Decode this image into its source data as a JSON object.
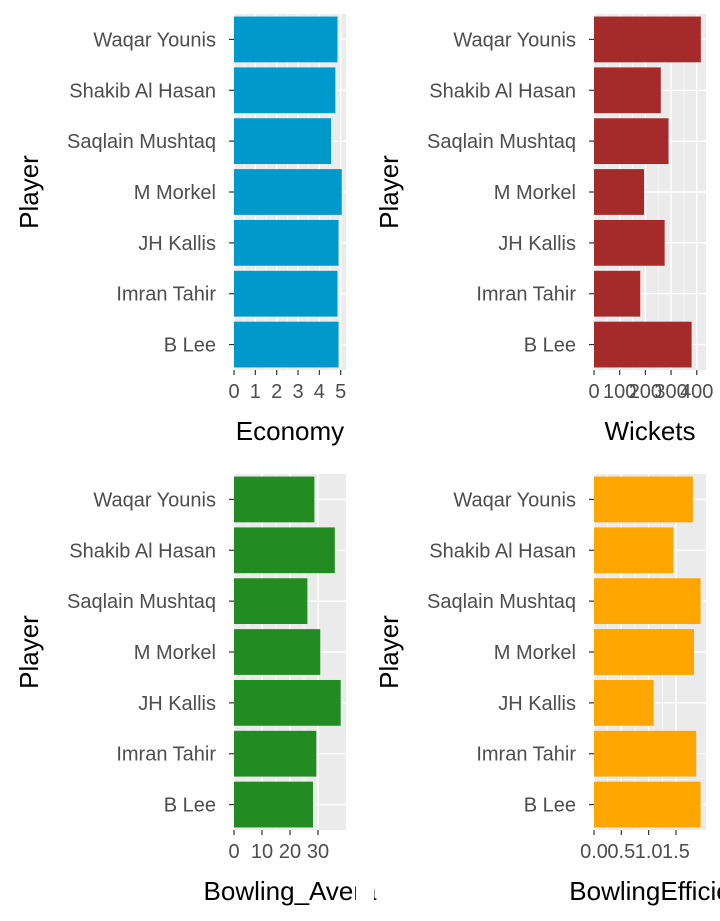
{
  "chart_data": [
    {
      "type": "bar",
      "orientation": "horizontal",
      "categories": [
        "B Lee",
        "Imran Tahir",
        "JH Kallis",
        "M Morkel",
        "Saqlain Mushtaq",
        "Shakib Al Hasan",
        "Waqar Younis"
      ],
      "values": [
        4.9,
        4.85,
        4.9,
        5.05,
        4.55,
        4.75,
        4.85
      ],
      "xlabel": "Economy",
      "ylabel": "Player",
      "xlim": [
        0,
        5.25
      ],
      "xticks": [
        "0",
        "1",
        "2",
        "3",
        "4",
        "5"
      ],
      "xtick_values": [
        0,
        1,
        2,
        3,
        4,
        5
      ],
      "color": "#0099cc",
      "grid": true,
      "panel_background": "#ebebeb"
    },
    {
      "type": "bar",
      "orientation": "horizontal",
      "categories": [
        "B Lee",
        "Imran Tahir",
        "JH Kallis",
        "M Morkel",
        "Saqlain Mushtaq",
        "Shakib Al Hasan",
        "Waqar Younis"
      ],
      "values": [
        380,
        180,
        275,
        195,
        290,
        260,
        416
      ],
      "xlabel": "Wickets",
      "ylabel": "Player",
      "xlim": [
        0,
        436
      ],
      "xticks": [
        "0",
        "100",
        "200",
        "300",
        "400"
      ],
      "xtick_values": [
        0,
        100,
        200,
        300,
        400
      ],
      "color": "#a52a2a",
      "grid": true,
      "panel_background": "#ebebeb"
    },
    {
      "type": "bar",
      "orientation": "horizontal",
      "categories": [
        "B Lee",
        "Imran Tahir",
        "JH Kallis",
        "M Morkel",
        "Saqlain Mushtaq",
        "Shakib Al Hasan",
        "Waqar Younis"
      ],
      "values": [
        28.2,
        29.4,
        38.1,
        30.8,
        26.2,
        36.0,
        28.7
      ],
      "xlabel": "Bowling_Avera",
      "ylabel": "Player",
      "xlim": [
        0,
        40
      ],
      "xticks": [
        "0",
        "10",
        "20",
        "30"
      ],
      "xtick_values": [
        0,
        10,
        20,
        30
      ],
      "color": "#228b22",
      "grid": true,
      "panel_background": "#ebebeb"
    },
    {
      "type": "bar",
      "orientation": "horizontal",
      "categories": [
        "B Lee",
        "Imran Tahir",
        "JH Kallis",
        "M Morkel",
        "Saqlain Mushtaq",
        "Shakib Al Hasan",
        "Waqar Younis"
      ],
      "values": [
        1.95,
        1.87,
        1.09,
        1.83,
        1.95,
        1.45,
        1.81
      ],
      "xlabel": "BowlingEfficie",
      "ylabel": "Player",
      "xlim": [
        0,
        2.05
      ],
      "xticks": [
        "0.0",
        "0.5",
        "1.0",
        "1.5"
      ],
      "xtick_values": [
        0,
        0.5,
        1.0,
        1.5
      ],
      "color": "#ffa500",
      "grid": true,
      "panel_background": "#ebebeb"
    }
  ]
}
